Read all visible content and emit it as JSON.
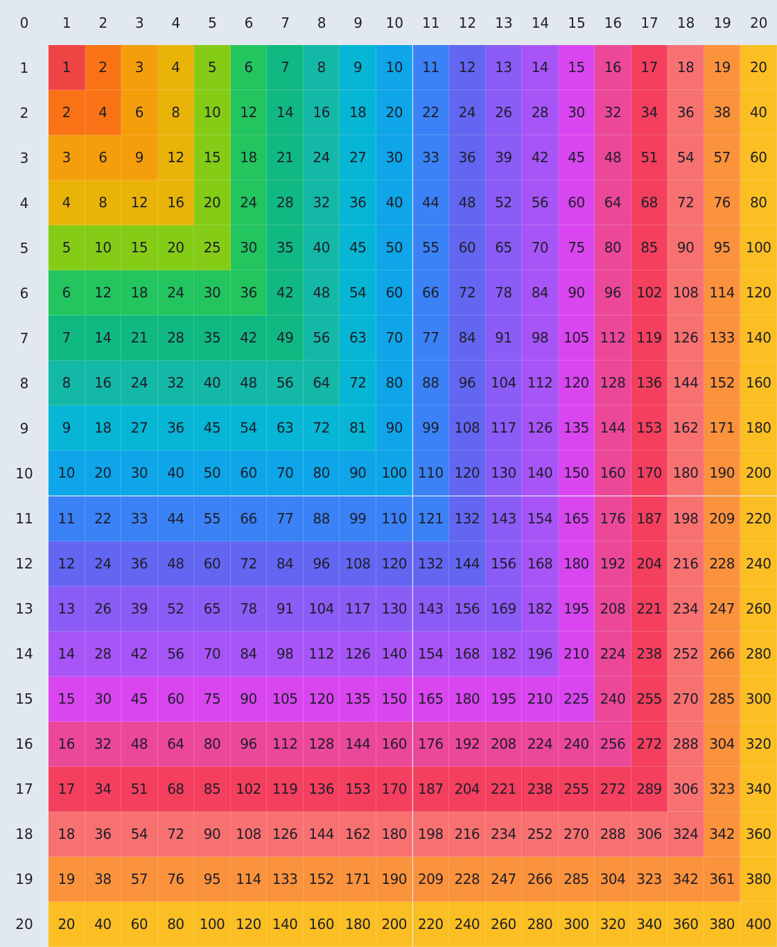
{
  "table": {
    "corner": 0,
    "column_headers": [
      1,
      2,
      3,
      4,
      5,
      6,
      7,
      8,
      9,
      10,
      11,
      12,
      13,
      14,
      15,
      16,
      17,
      18,
      19,
      20
    ],
    "row_headers": [
      1,
      2,
      3,
      4,
      5,
      6,
      7,
      8,
      9,
      10,
      11,
      12,
      13,
      14,
      15,
      16,
      17,
      18,
      19,
      20
    ],
    "palette": [
      "#ef4444",
      "#f97316",
      "#f59e0b",
      "#eab308",
      "#84cc16",
      "#22c55e",
      "#10b981",
      "#14b8a6",
      "#06b6d4",
      "#0ea5e9",
      "#3b82f6",
      "#6366f1",
      "#8b5cf6",
      "#a855f7",
      "#d946ef",
      "#ec4899",
      "#f43f5e",
      "#f87171",
      "#fb923c",
      "#fbbf24"
    ],
    "rows": [
      [
        1,
        2,
        3,
        4,
        5,
        6,
        7,
        8,
        9,
        10,
        11,
        12,
        13,
        14,
        15,
        16,
        17,
        18,
        19,
        20
      ],
      [
        2,
        4,
        6,
        8,
        10,
        12,
        14,
        16,
        18,
        20,
        22,
        24,
        26,
        28,
        30,
        32,
        34,
        36,
        38,
        40
      ],
      [
        3,
        6,
        9,
        12,
        15,
        18,
        21,
        24,
        27,
        30,
        33,
        36,
        39,
        42,
        45,
        48,
        51,
        54,
        57,
        60
      ],
      [
        4,
        8,
        12,
        16,
        20,
        24,
        28,
        32,
        36,
        40,
        44,
        48,
        52,
        56,
        60,
        64,
        68,
        72,
        76,
        80
      ],
      [
        5,
        10,
        15,
        20,
        25,
        30,
        35,
        40,
        45,
        50,
        55,
        60,
        65,
        70,
        75,
        80,
        85,
        90,
        95,
        100
      ],
      [
        6,
        12,
        18,
        24,
        30,
        36,
        42,
        48,
        54,
        60,
        66,
        72,
        78,
        84,
        90,
        96,
        102,
        108,
        114,
        120
      ],
      [
        7,
        14,
        21,
        28,
        35,
        42,
        49,
        56,
        63,
        70,
        77,
        84,
        91,
        98,
        105,
        112,
        119,
        126,
        133,
        140
      ],
      [
        8,
        16,
        24,
        32,
        40,
        48,
        56,
        64,
        72,
        80,
        88,
        96,
        104,
        112,
        120,
        128,
        136,
        144,
        152,
        160
      ],
      [
        9,
        18,
        27,
        36,
        45,
        54,
        63,
        72,
        81,
        90,
        99,
        108,
        117,
        126,
        135,
        144,
        153,
        162,
        171,
        180
      ],
      [
        10,
        20,
        30,
        40,
        50,
        60,
        70,
        80,
        90,
        100,
        110,
        120,
        130,
        140,
        150,
        160,
        170,
        180,
        190,
        200
      ],
      [
        11,
        22,
        33,
        44,
        55,
        66,
        77,
        88,
        99,
        110,
        121,
        132,
        143,
        154,
        165,
        176,
        187,
        198,
        209,
        220
      ],
      [
        12,
        24,
        36,
        48,
        60,
        72,
        84,
        96,
        108,
        120,
        132,
        144,
        156,
        168,
        180,
        192,
        204,
        216,
        228,
        240
      ],
      [
        13,
        26,
        39,
        52,
        65,
        78,
        91,
        104,
        117,
        130,
        143,
        156,
        169,
        182,
        195,
        208,
        221,
        234,
        247,
        260
      ],
      [
        14,
        28,
        42,
        56,
        70,
        84,
        98,
        112,
        126,
        140,
        154,
        168,
        182,
        196,
        210,
        224,
        238,
        252,
        266,
        280
      ],
      [
        15,
        30,
        45,
        60,
        75,
        90,
        105,
        120,
        135,
        150,
        165,
        180,
        195,
        210,
        225,
        240,
        255,
        270,
        285,
        300
      ],
      [
        16,
        32,
        48,
        64,
        80,
        96,
        112,
        128,
        144,
        160,
        176,
        192,
        208,
        224,
        240,
        256,
        272,
        288,
        304,
        320
      ],
      [
        17,
        34,
        51,
        68,
        85,
        102,
        119,
        136,
        153,
        170,
        187,
        204,
        221,
        238,
        255,
        272,
        289,
        306,
        323,
        340
      ],
      [
        18,
        36,
        54,
        72,
        90,
        108,
        126,
        144,
        162,
        180,
        198,
        216,
        234,
        252,
        270,
        288,
        306,
        324,
        342,
        360
      ],
      [
        19,
        38,
        57,
        76,
        95,
        114,
        133,
        152,
        171,
        190,
        209,
        228,
        247,
        266,
        285,
        304,
        323,
        342,
        361,
        380
      ],
      [
        20,
        40,
        60,
        80,
        100,
        120,
        140,
        160,
        180,
        200,
        220,
        240,
        260,
        280,
        300,
        320,
        340,
        360,
        380,
        400
      ]
    ]
  }
}
